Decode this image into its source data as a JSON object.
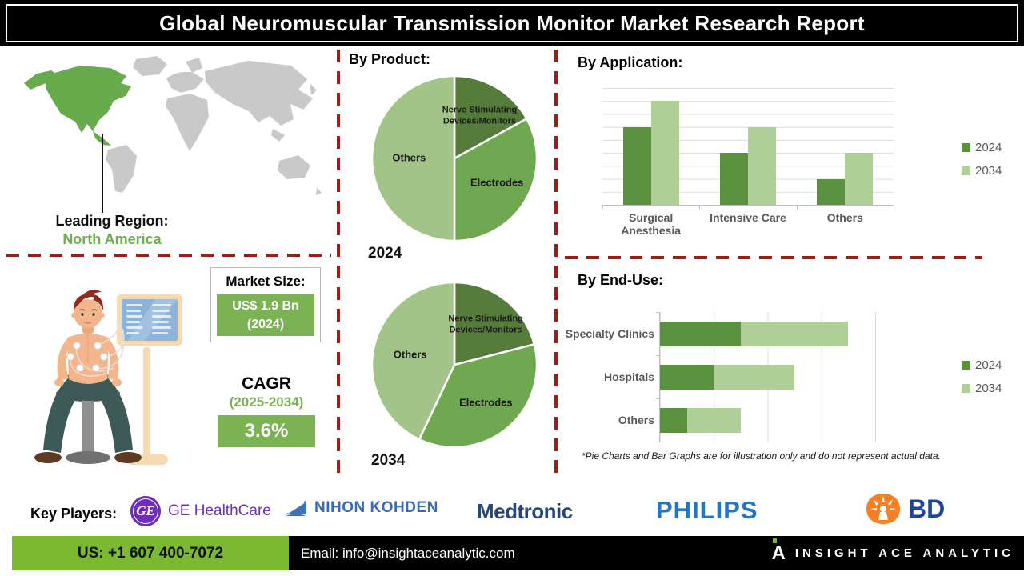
{
  "title": "Global Neuromuscular Transmission Monitor Market Research Report",
  "map": {
    "highlight_color": "#68ab4c",
    "base_color": "#c9c9c9"
  },
  "leading_region": {
    "label": "Leading Region:",
    "value": "North America"
  },
  "market_size": {
    "label": "Market Size:",
    "value": "US$ 1.9 Bn",
    "year": "(2024)"
  },
  "cagr": {
    "label": "CAGR",
    "period": "(2025-2034)",
    "value": "3.6%"
  },
  "sections": {
    "product": "By Product:",
    "application": "By Application:",
    "end_use": "By End-Use:"
  },
  "disclaimer": "*Pie Charts and Bar Graphs are for illustration only and do not represent actual data.",
  "key_players": {
    "label": "Key Players:",
    "ge": {
      "name": "GE HealthCare",
      "monogram": "GE",
      "color": "#6d2eb8"
    },
    "nihon": {
      "name": "NIHON KOHDEN",
      "color": "#3a6bb3"
    },
    "medtronic": {
      "name": "Medtronic",
      "color": "#26477c"
    },
    "philips": {
      "name": "PHILIPS",
      "color": "#2277c3"
    },
    "bd": {
      "name": "BD",
      "color": "#1f4696",
      "icon_color": "#f58025"
    }
  },
  "footer": {
    "phone": "US: +1 607 400-7072",
    "email": "Email: info@insightaceanalytic.com",
    "brand": "INSIGHT ACE ANALYTIC",
    "brand_glyph": "A"
  },
  "colors": {
    "accent_red": "#9e1b16",
    "pie_dark": "#567c3c",
    "pie_mid": "#70a851",
    "pie_light": "#a2c488",
    "bar_2024": "#5b923f",
    "bar_2034": "#aecf97",
    "box_green": "#7ab254",
    "footer_green": "#7cb832"
  },
  "chart_data": [
    {
      "id": "product-2024",
      "type": "pie",
      "title": "2024",
      "labels": [
        "Nerve Stimulating Devices/Monitors",
        "Electrodes",
        "Others"
      ],
      "values": [
        17,
        33,
        50
      ],
      "units": "percent (illustrative)",
      "colors": [
        "#567c3c",
        "#70a851",
        "#a2c488"
      ],
      "label_radius": [
        0.6,
        0.6,
        0.55
      ]
    },
    {
      "id": "product-2034",
      "type": "pie",
      "title": "2034",
      "labels": [
        "Nerve Stimulating Devices/Monitors",
        "Electrodes",
        "Others"
      ],
      "values": [
        21,
        36,
        43
      ],
      "units": "percent (illustrative)",
      "colors": [
        "#567c3c",
        "#70a851",
        "#a2c488"
      ],
      "label_radius": [
        0.62,
        0.6,
        0.55
      ]
    },
    {
      "id": "application",
      "type": "bar",
      "title": "By Application:",
      "categories": [
        "Surgical Anesthesia",
        "Intensive Care",
        "Others"
      ],
      "series": [
        {
          "name": "2024",
          "color": "#5b923f",
          "values": [
            6,
            4,
            2
          ]
        },
        {
          "name": "2034",
          "color": "#aecf97",
          "values": [
            8,
            6,
            4
          ]
        }
      ],
      "ylim": [
        0,
        9
      ],
      "grid": true,
      "legend_position": "right",
      "units": "illustrative"
    },
    {
      "id": "end-use",
      "type": "hbar-stacked",
      "title": "By End-Use:",
      "categories": [
        "Specialty Clinics",
        "Hospitals",
        "Others"
      ],
      "series": [
        {
          "name": "2024",
          "color": "#5b923f",
          "values": [
            1.5,
            1.0,
            0.5
          ]
        },
        {
          "name": "2034",
          "color": "#aecf97",
          "values": [
            2.0,
            1.5,
            1.0
          ]
        }
      ],
      "xlim": [
        0,
        4
      ],
      "grid": true,
      "legend_position": "right",
      "units": "illustrative"
    }
  ]
}
